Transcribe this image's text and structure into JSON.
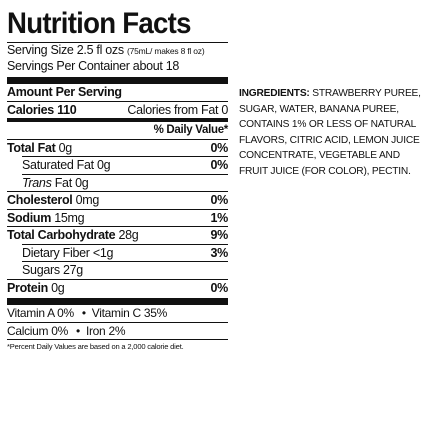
{
  "label": {
    "title": "Nutrition Facts",
    "serving_size_label": "Serving Size 2.5 fl ozs",
    "serving_size_note": "(75mL/ makes 8 fl oz)",
    "servings_per_container": "Servings Per Container about 18",
    "amount_per_serving": "Amount Per Serving",
    "calories_label": "Calories 110",
    "calories_from_fat_label": "Calories from Fat 0",
    "daily_value_header": "% Daily Value*",
    "nutrients": [
      {
        "name": "Total Fat",
        "amount": "0g",
        "dv": "0%"
      },
      {
        "name": "Saturated Fat",
        "amount": "0g",
        "dv": "0%"
      },
      {
        "name": "Trans",
        "name_suffix": "Fat",
        "amount": "0g",
        "dv": ""
      },
      {
        "name": "Cholesterol",
        "amount": "0mg",
        "dv": "0%"
      },
      {
        "name": "Sodium",
        "amount": "15mg",
        "dv": "1%"
      },
      {
        "name": "Total Carbohydrate",
        "amount": "28g",
        "dv": "9%"
      },
      {
        "name": "Dietary Fiber",
        "amount": "<1g",
        "dv": "3%"
      },
      {
        "name": "Sugars",
        "amount": "27g",
        "dv": ""
      },
      {
        "name": "Protein",
        "amount": "0g",
        "dv": "0%"
      }
    ],
    "vitamins": [
      {
        "left": "Vitamin A 0%",
        "right": "Vitamin C 35%"
      },
      {
        "left": "Calcium 0%",
        "right": "Iron 2%"
      }
    ],
    "bullet": "•",
    "footnote": "*Percent Daily Values are based on a 2,000 calorie diet."
  },
  "ingredients": {
    "label": "INGREDIENTS:",
    "text": "STRAWBERRY PUREE, SUGAR, WATER, BANANA PUREE, CONTAINS 1% OR LESS OF NATURAL FLAVORS, CITRIC ACID, LEMON JUICE CONCENTRATE, VEGETABLE AND FRUIT JUICE (FOR COLOR), PECTIN."
  }
}
